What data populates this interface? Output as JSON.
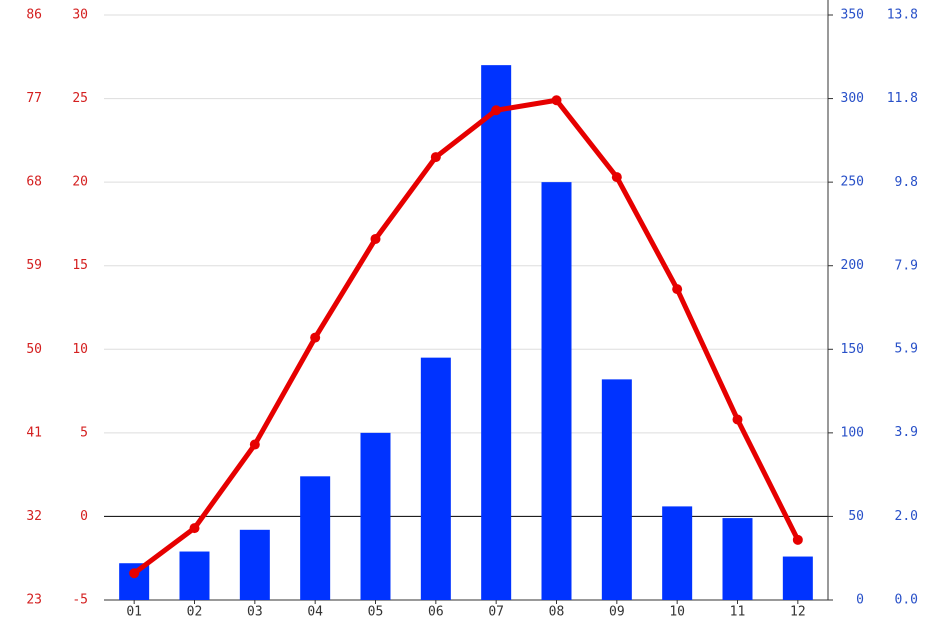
{
  "chart_data": {
    "type": "combo",
    "categories": [
      "01",
      "02",
      "03",
      "04",
      "05",
      "06",
      "07",
      "08",
      "09",
      "10",
      "11",
      "12"
    ],
    "series": [
      {
        "type": "bar",
        "axis": "y2",
        "color": "#0033ff",
        "values": [
          22,
          29,
          42,
          74,
          100,
          145,
          320,
          250,
          132,
          56,
          49,
          26
        ]
      },
      {
        "type": "line",
        "color": "#e60000",
        "values": [
          -3.4,
          -0.7,
          4.3,
          10.7,
          16.6,
          21.5,
          24.3,
          24.9,
          20.3,
          13.6,
          5.8,
          -1.4
        ]
      }
    ],
    "ylim": [
      -5,
      30
    ],
    "yticks": [
      -5,
      0,
      5,
      10,
      15,
      20,
      25,
      30
    ],
    "y2lim": [
      0,
      350
    ],
    "y2ticks": [
      0,
      50,
      100,
      150,
      200,
      250,
      300,
      350
    ],
    "y3lim": [
      23,
      86
    ],
    "y3ticks": [
      23,
      32,
      41,
      50,
      59,
      68,
      77,
      86
    ],
    "y4lim": [
      0,
      13.78
    ],
    "y4ticks": [
      {
        "value": 0,
        "label": "0.0"
      },
      {
        "value": 1.97,
        "label": "2.0"
      },
      {
        "value": 3.94,
        "label": "3.9"
      },
      {
        "value": 5.91,
        "label": "5.9"
      },
      {
        "value": 7.87,
        "label": "7.9"
      },
      {
        "value": 9.84,
        "label": "9.8"
      },
      {
        "value": 11.81,
        "label": "11.8"
      },
      {
        "value": 13.78,
        "label": "13.8"
      }
    ],
    "grid": true
  }
}
